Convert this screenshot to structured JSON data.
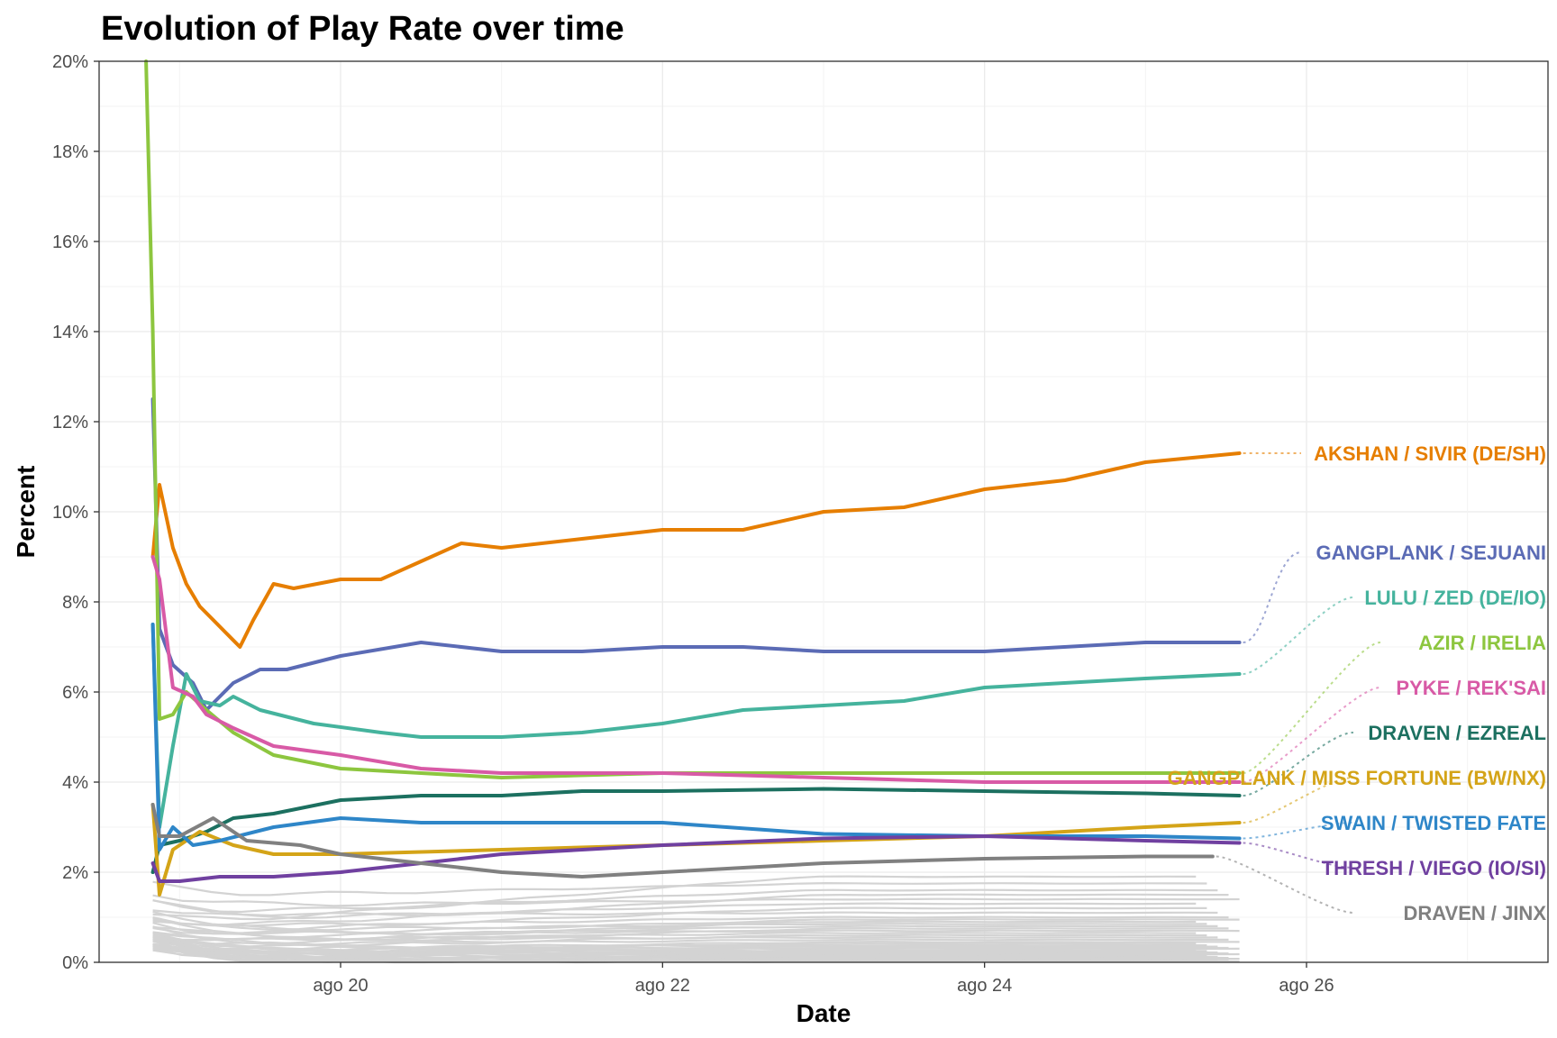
{
  "chart_data": {
    "type": "line",
    "title": "Evolution of Play Rate over time",
    "xlabel": "Date",
    "ylabel": "Percent",
    "ylim": [
      0,
      20
    ],
    "xlim": [
      "2023-08-18T12:00",
      "2023-08-27T12:00"
    ],
    "y_ticks": [
      {
        "value": 0,
        "label": "0%"
      },
      {
        "value": 2,
        "label": "2%"
      },
      {
        "value": 4,
        "label": "4%"
      },
      {
        "value": 6,
        "label": "6%"
      },
      {
        "value": 8,
        "label": "8%"
      },
      {
        "value": 10,
        "label": "10%"
      },
      {
        "value": 12,
        "label": "12%"
      },
      {
        "value": 14,
        "label": "14%"
      },
      {
        "value": 16,
        "label": "16%"
      },
      {
        "value": 18,
        "label": "18%"
      },
      {
        "value": 20,
        "label": "20%"
      }
    ],
    "x_ticks": [
      {
        "value": "2023-08-20T00:00",
        "label": "ago 20"
      },
      {
        "value": "2023-08-22T00:00",
        "label": "ago 22"
      },
      {
        "value": "2023-08-24T00:00",
        "label": "ago 24"
      },
      {
        "value": "2023-08-26T00:00",
        "label": "ago 26"
      }
    ],
    "grid": true,
    "legend": "none (direct labels at right)",
    "background_series": {
      "color": "#d3d3d3",
      "end": "2023-08-25T14:00",
      "final_values": [
        1.9,
        1.75,
        1.6,
        1.5,
        1.4,
        1.3,
        1.2,
        1.1,
        1.0,
        0.95,
        0.9,
        0.85,
        0.8,
        0.75,
        0.7,
        0.65,
        0.6,
        0.55,
        0.5,
        0.45,
        0.42,
        0.38,
        0.35,
        0.32,
        0.3,
        0.27,
        0.25,
        0.22,
        0.2,
        0.18,
        0.16,
        0.14,
        0.12,
        0.1,
        0.08,
        0.06,
        0.05,
        0.04,
        0.03,
        0.02
      ]
    },
    "series": [
      {
        "name": "AKSHAN / SIVIR (DE/SH)",
        "color": "#e67e00",
        "label_anchor": 11.3,
        "points": [
          [
            "2023-08-18T20:00",
            9.0
          ],
          [
            "2023-08-18T21:00",
            10.6
          ],
          [
            "2023-08-18T23:00",
            9.2
          ],
          [
            "2023-08-19T01:00",
            8.4
          ],
          [
            "2023-08-19T03:00",
            7.9
          ],
          [
            "2023-08-19T05:00",
            7.6
          ],
          [
            "2023-08-19T07:00",
            7.3
          ],
          [
            "2023-08-19T09:00",
            7.0
          ],
          [
            "2023-08-19T11:00",
            7.6
          ],
          [
            "2023-08-19T14:00",
            8.4
          ],
          [
            "2023-08-19T17:00",
            8.3
          ],
          [
            "2023-08-20T00:00",
            8.5
          ],
          [
            "2023-08-20T06:00",
            8.5
          ],
          [
            "2023-08-20T12:00",
            8.9
          ],
          [
            "2023-08-20T18:00",
            9.3
          ],
          [
            "2023-08-21T00:00",
            9.2
          ],
          [
            "2023-08-21T12:00",
            9.4
          ],
          [
            "2023-08-22T00:00",
            9.6
          ],
          [
            "2023-08-22T12:00",
            9.6
          ],
          [
            "2023-08-23T00:00",
            10.0
          ],
          [
            "2023-08-23T12:00",
            10.1
          ],
          [
            "2023-08-24T00:00",
            10.5
          ],
          [
            "2023-08-24T12:00",
            10.7
          ],
          [
            "2023-08-25T00:00",
            11.1
          ],
          [
            "2023-08-25T14:00",
            11.3
          ]
        ]
      },
      {
        "name": "GANGPLANK / SEJUANI",
        "color": "#5b6bb5",
        "label_anchor": 9.1,
        "points": [
          [
            "2023-08-18T20:00",
            12.5
          ],
          [
            "2023-08-18T21:00",
            7.4
          ],
          [
            "2023-08-18T23:00",
            6.6
          ],
          [
            "2023-08-19T02:00",
            6.2
          ],
          [
            "2023-08-19T04:00",
            5.6
          ],
          [
            "2023-08-19T08:00",
            6.2
          ],
          [
            "2023-08-19T12:00",
            6.5
          ],
          [
            "2023-08-19T16:00",
            6.5
          ],
          [
            "2023-08-20T00:00",
            6.8
          ],
          [
            "2023-08-20T12:00",
            7.1
          ],
          [
            "2023-08-21T00:00",
            6.9
          ],
          [
            "2023-08-21T12:00",
            6.9
          ],
          [
            "2023-08-22T00:00",
            7.0
          ],
          [
            "2023-08-22T12:00",
            7.0
          ],
          [
            "2023-08-23T00:00",
            6.9
          ],
          [
            "2023-08-24T00:00",
            6.9
          ],
          [
            "2023-08-25T00:00",
            7.1
          ],
          [
            "2023-08-25T14:00",
            7.1
          ]
        ]
      },
      {
        "name": "LULU / ZED (DE/IO)",
        "color": "#45b39d",
        "label_anchor": 8.1,
        "points": [
          [
            "2023-08-18T20:00",
            7.5
          ],
          [
            "2023-08-18T21:00",
            3.0
          ],
          [
            "2023-08-18T23:00",
            4.8
          ],
          [
            "2023-08-19T01:00",
            6.4
          ],
          [
            "2023-08-19T03:00",
            5.8
          ],
          [
            "2023-08-19T06:00",
            5.7
          ],
          [
            "2023-08-19T08:00",
            5.9
          ],
          [
            "2023-08-19T12:00",
            5.6
          ],
          [
            "2023-08-19T20:00",
            5.3
          ],
          [
            "2023-08-20T06:00",
            5.1
          ],
          [
            "2023-08-20T12:00",
            5.0
          ],
          [
            "2023-08-21T00:00",
            5.0
          ],
          [
            "2023-08-21T12:00",
            5.1
          ],
          [
            "2023-08-22T00:00",
            5.3
          ],
          [
            "2023-08-22T12:00",
            5.6
          ],
          [
            "2023-08-23T00:00",
            5.7
          ],
          [
            "2023-08-23T12:00",
            5.8
          ],
          [
            "2023-08-24T00:00",
            6.1
          ],
          [
            "2023-08-25T00:00",
            6.3
          ],
          [
            "2023-08-25T14:00",
            6.4
          ]
        ]
      },
      {
        "name": "AZIR / IRELIA",
        "color": "#8dc63f",
        "label_anchor": 7.1,
        "points": [
          [
            "2023-08-18T19:00",
            20.0
          ],
          [
            "2023-08-18T20:00",
            14.0
          ],
          [
            "2023-08-18T21:00",
            5.4
          ],
          [
            "2023-08-18T23:00",
            5.5
          ],
          [
            "2023-08-19T01:00",
            6.0
          ],
          [
            "2023-08-19T04:00",
            5.6
          ],
          [
            "2023-08-19T08:00",
            5.1
          ],
          [
            "2023-08-19T14:00",
            4.6
          ],
          [
            "2023-08-20T00:00",
            4.3
          ],
          [
            "2023-08-20T12:00",
            4.2
          ],
          [
            "2023-08-21T00:00",
            4.1
          ],
          [
            "2023-08-22T00:00",
            4.2
          ],
          [
            "2023-08-23T00:00",
            4.2
          ],
          [
            "2023-08-24T00:00",
            4.2
          ],
          [
            "2023-08-25T00:00",
            4.2
          ],
          [
            "2023-08-25T14:00",
            4.2
          ]
        ]
      },
      {
        "name": "PYKE / REK'SAI",
        "color": "#d85aa6",
        "label_anchor": 6.1,
        "points": [
          [
            "2023-08-18T20:00",
            9.0
          ],
          [
            "2023-08-18T21:00",
            8.5
          ],
          [
            "2023-08-18T23:00",
            6.1
          ],
          [
            "2023-08-19T02:00",
            5.9
          ],
          [
            "2023-08-19T04:00",
            5.5
          ],
          [
            "2023-08-19T08:00",
            5.2
          ],
          [
            "2023-08-19T14:00",
            4.8
          ],
          [
            "2023-08-20T00:00",
            4.6
          ],
          [
            "2023-08-20T12:00",
            4.3
          ],
          [
            "2023-08-21T00:00",
            4.2
          ],
          [
            "2023-08-22T00:00",
            4.2
          ],
          [
            "2023-08-23T00:00",
            4.1
          ],
          [
            "2023-08-24T00:00",
            4.0
          ],
          [
            "2023-08-25T00:00",
            4.0
          ],
          [
            "2023-08-25T14:00",
            4.0
          ]
        ]
      },
      {
        "name": "DRAVEN / EZREAL",
        "color": "#1c7060",
        "label_anchor": 5.1,
        "points": [
          [
            "2023-08-18T20:00",
            2.0
          ],
          [
            "2023-08-18T21:00",
            2.6
          ],
          [
            "2023-08-19T00:00",
            2.7
          ],
          [
            "2023-08-19T04:00",
            2.9
          ],
          [
            "2023-08-19T08:00",
            3.2
          ],
          [
            "2023-08-19T14:00",
            3.3
          ],
          [
            "2023-08-20T00:00",
            3.6
          ],
          [
            "2023-08-20T12:00",
            3.7
          ],
          [
            "2023-08-21T00:00",
            3.7
          ],
          [
            "2023-08-21T12:00",
            3.8
          ],
          [
            "2023-08-22T00:00",
            3.8
          ],
          [
            "2023-08-23T00:00",
            3.85
          ],
          [
            "2023-08-24T00:00",
            3.8
          ],
          [
            "2023-08-25T00:00",
            3.75
          ],
          [
            "2023-08-25T14:00",
            3.7
          ]
        ]
      },
      {
        "name": "GANGPLANK / MISS FORTUNE (BW/NX)",
        "color": "#d4a418",
        "label_anchor": 4.1,
        "points": [
          [
            "2023-08-18T20:00",
            3.5
          ],
          [
            "2023-08-18T21:00",
            1.5
          ],
          [
            "2023-08-18T23:00",
            2.5
          ],
          [
            "2023-08-19T03:00",
            2.9
          ],
          [
            "2023-08-19T08:00",
            2.6
          ],
          [
            "2023-08-19T14:00",
            2.4
          ],
          [
            "2023-08-20T00:00",
            2.4
          ],
          [
            "2023-08-21T00:00",
            2.5
          ],
          [
            "2023-08-22T00:00",
            2.6
          ],
          [
            "2023-08-23T00:00",
            2.7
          ],
          [
            "2023-08-24T00:00",
            2.8
          ],
          [
            "2023-08-25T00:00",
            3.0
          ],
          [
            "2023-08-25T14:00",
            3.1
          ]
        ]
      },
      {
        "name": "SWAIN / TWISTED FATE",
        "color": "#2e86c8",
        "label_anchor": 3.1,
        "points": [
          [
            "2023-08-18T20:00",
            7.5
          ],
          [
            "2023-08-18T21:00",
            2.5
          ],
          [
            "2023-08-18T23:00",
            3.0
          ],
          [
            "2023-08-19T02:00",
            2.6
          ],
          [
            "2023-08-19T06:00",
            2.7
          ],
          [
            "2023-08-19T14:00",
            3.0
          ],
          [
            "2023-08-20T00:00",
            3.2
          ],
          [
            "2023-08-20T12:00",
            3.1
          ],
          [
            "2023-08-21T00:00",
            3.1
          ],
          [
            "2023-08-22T00:00",
            3.1
          ],
          [
            "2023-08-23T00:00",
            2.85
          ],
          [
            "2023-08-24T00:00",
            2.8
          ],
          [
            "2023-08-25T00:00",
            2.8
          ],
          [
            "2023-08-25T14:00",
            2.75
          ]
        ]
      },
      {
        "name": "THRESH / VIEGO (IO/SI)",
        "color": "#7040a0",
        "label_anchor": 2.1,
        "points": [
          [
            "2023-08-18T20:00",
            2.2
          ],
          [
            "2023-08-18T21:00",
            1.8
          ],
          [
            "2023-08-19T00:00",
            1.8
          ],
          [
            "2023-08-19T06:00",
            1.9
          ],
          [
            "2023-08-19T14:00",
            1.9
          ],
          [
            "2023-08-20T00:00",
            2.0
          ],
          [
            "2023-08-20T12:00",
            2.2
          ],
          [
            "2023-08-21T00:00",
            2.4
          ],
          [
            "2023-08-22T00:00",
            2.6
          ],
          [
            "2023-08-23T00:00",
            2.75
          ],
          [
            "2023-08-24T00:00",
            2.8
          ],
          [
            "2023-08-25T00:00",
            2.7
          ],
          [
            "2023-08-25T14:00",
            2.65
          ]
        ]
      },
      {
        "name": "DRAVEN / JINX",
        "color": "#808080",
        "label_anchor": 1.1,
        "points": [
          [
            "2023-08-18T20:00",
            3.5
          ],
          [
            "2023-08-18T21:00",
            2.8
          ],
          [
            "2023-08-19T00:00",
            2.8
          ],
          [
            "2023-08-19T05:00",
            3.2
          ],
          [
            "2023-08-19T10:00",
            2.7
          ],
          [
            "2023-08-19T18:00",
            2.6
          ],
          [
            "2023-08-20T00:00",
            2.4
          ],
          [
            "2023-08-20T12:00",
            2.2
          ],
          [
            "2023-08-21T00:00",
            2.0
          ],
          [
            "2023-08-21T12:00",
            1.9
          ],
          [
            "2023-08-22T00:00",
            2.0
          ],
          [
            "2023-08-23T00:00",
            2.2
          ],
          [
            "2023-08-24T00:00",
            2.3
          ],
          [
            "2023-08-25T00:00",
            2.35
          ],
          [
            "2023-08-25T10:00",
            2.35
          ]
        ]
      }
    ]
  }
}
